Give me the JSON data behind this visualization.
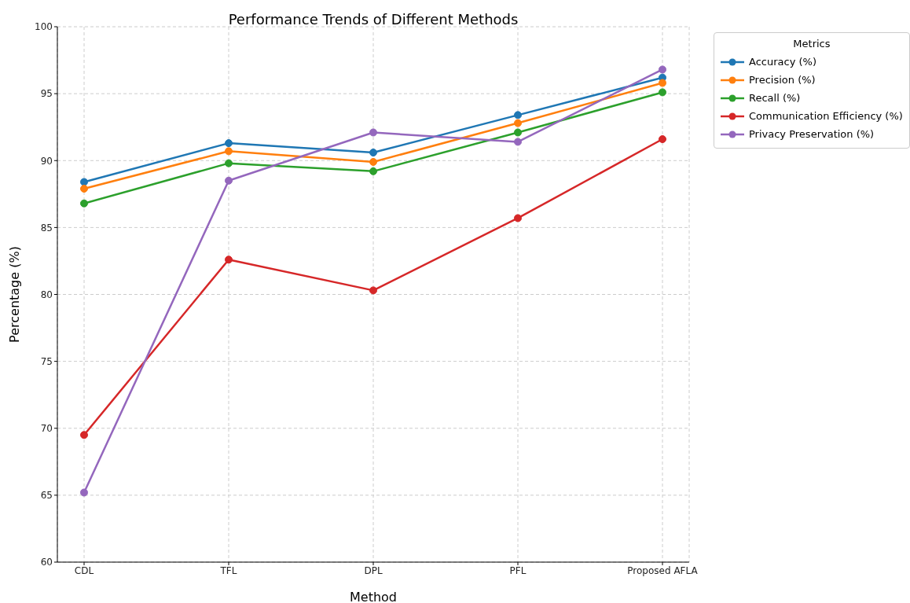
{
  "chart_data": {
    "type": "line",
    "title": "Performance Trends of Different Methods",
    "xlabel": "Method",
    "ylabel": "Percentage (%)",
    "legend_title": "Metrics",
    "categories": [
      "CDL",
      "TFL",
      "DPL",
      "PFL",
      "Proposed AFLA"
    ],
    "series": [
      {
        "name": "Accuracy (%)",
        "color": "#1f77b4",
        "values": [
          88.4,
          91.3,
          90.6,
          93.4,
          96.2
        ]
      },
      {
        "name": "Precision (%)",
        "color": "#ff7f0e",
        "values": [
          87.9,
          90.7,
          89.9,
          92.8,
          95.8
        ]
      },
      {
        "name": "Recall (%)",
        "color": "#2ca02c",
        "values": [
          86.8,
          89.8,
          89.2,
          92.1,
          95.1
        ]
      },
      {
        "name": "Communication Efficiency (%)",
        "color": "#d62728",
        "values": [
          69.5,
          82.6,
          80.3,
          85.7,
          91.6
        ]
      },
      {
        "name": "Privacy Preservation (%)",
        "color": "#9467bd",
        "values": [
          65.2,
          88.5,
          92.1,
          91.4,
          96.8
        ]
      }
    ],
    "ylim": [
      60,
      100
    ],
    "yticks": [
      60,
      65,
      70,
      75,
      80,
      85,
      90,
      95,
      100
    ],
    "grid": true,
    "legend": "top right",
    "marker": "circle",
    "line_style": "solid"
  }
}
